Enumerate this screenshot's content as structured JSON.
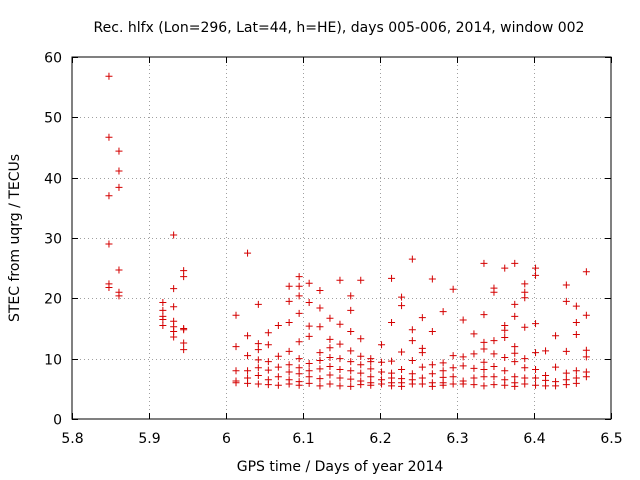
{
  "chart_data": {
    "type": "scatter",
    "title": "Rec. hlfx (Lon=296, Lat=44, h=HE), days 005-006, 2014, window 002",
    "xlabel": "GPS time / Days of year 2014",
    "ylabel": "STEC from uqrg / TECUs",
    "xlim": [
      5.8,
      6.5
    ],
    "ylim": [
      0,
      60
    ],
    "xticks": [
      5.8,
      5.9,
      6.0,
      6.1,
      6.2,
      6.3,
      6.4,
      6.5
    ],
    "xtick_labels": [
      "5.8",
      "5.9",
      "6",
      "6.1",
      "6.2",
      "6.3",
      "6.4",
      "6.5"
    ],
    "yticks": [
      0,
      10,
      20,
      30,
      40,
      50,
      60
    ],
    "ytick_labels": [
      "0",
      "10",
      "20",
      "30",
      "40",
      "50",
      "60"
    ],
    "grid": true,
    "marker": "+",
    "marker_color": "#d40000",
    "series": [
      {
        "name": "STEC",
        "points": [
          [
            5.848,
            56.8
          ],
          [
            5.848,
            46.7
          ],
          [
            5.848,
            37.0
          ],
          [
            5.848,
            29.0
          ],
          [
            5.848,
            22.4
          ],
          [
            5.848,
            21.8
          ],
          [
            5.861,
            44.4
          ],
          [
            5.861,
            41.1
          ],
          [
            5.861,
            38.4
          ],
          [
            5.861,
            24.7
          ],
          [
            5.861,
            21.0
          ],
          [
            5.861,
            20.4
          ],
          [
            5.918,
            19.3
          ],
          [
            5.918,
            18.0
          ],
          [
            5.918,
            17.0
          ],
          [
            5.918,
            16.5
          ],
          [
            5.918,
            15.5
          ],
          [
            5.932,
            30.5
          ],
          [
            5.932,
            21.6
          ],
          [
            5.932,
            18.6
          ],
          [
            5.932,
            16.2
          ],
          [
            5.932,
            15.3
          ],
          [
            5.932,
            14.5
          ],
          [
            5.932,
            13.6
          ],
          [
            5.945,
            24.6
          ],
          [
            5.945,
            23.6
          ],
          [
            5.945,
            15.0
          ],
          [
            5.945,
            14.8
          ],
          [
            5.945,
            12.6
          ],
          [
            5.945,
            11.5
          ],
          [
            6.013,
            17.2
          ],
          [
            6.013,
            12.0
          ],
          [
            6.013,
            8.0
          ],
          [
            6.013,
            6.3
          ],
          [
            6.013,
            6.0
          ],
          [
            6.028,
            27.5
          ],
          [
            6.028,
            13.8
          ],
          [
            6.028,
            10.5
          ],
          [
            6.028,
            8.0
          ],
          [
            6.028,
            6.8
          ],
          [
            6.028,
            5.9
          ],
          [
            6.042,
            19.0
          ],
          [
            6.042,
            12.5
          ],
          [
            6.042,
            11.5
          ],
          [
            6.042,
            9.8
          ],
          [
            6.042,
            8.5
          ],
          [
            6.042,
            7.2
          ],
          [
            6.042,
            5.8
          ],
          [
            6.055,
            14.3
          ],
          [
            6.055,
            12.3
          ],
          [
            6.055,
            9.5
          ],
          [
            6.055,
            8.1
          ],
          [
            6.055,
            6.5
          ],
          [
            6.055,
            5.7
          ],
          [
            6.068,
            15.5
          ],
          [
            6.068,
            10.4
          ],
          [
            6.068,
            8.6
          ],
          [
            6.068,
            7.0
          ],
          [
            6.068,
            5.6
          ],
          [
            6.082,
            22.0
          ],
          [
            6.082,
            19.5
          ],
          [
            6.082,
            16.0
          ],
          [
            6.082,
            11.2
          ],
          [
            6.082,
            9.0
          ],
          [
            6.082,
            7.8
          ],
          [
            6.082,
            6.5
          ],
          [
            6.082,
            5.8
          ],
          [
            6.095,
            23.6
          ],
          [
            6.095,
            22.0
          ],
          [
            6.095,
            20.4
          ],
          [
            6.095,
            17.5
          ],
          [
            6.095,
            12.8
          ],
          [
            6.095,
            10.0
          ],
          [
            6.095,
            8.5
          ],
          [
            6.095,
            7.5
          ],
          [
            6.095,
            6.2
          ],
          [
            6.095,
            5.6
          ],
          [
            6.108,
            22.5
          ],
          [
            6.108,
            19.3
          ],
          [
            6.108,
            15.4
          ],
          [
            6.108,
            13.7
          ],
          [
            6.108,
            9.2
          ],
          [
            6.108,
            8.0
          ],
          [
            6.108,
            7.0
          ],
          [
            6.108,
            5.9
          ],
          [
            6.122,
            21.3
          ],
          [
            6.122,
            18.4
          ],
          [
            6.122,
            15.3
          ],
          [
            6.122,
            11.0
          ],
          [
            6.122,
            9.7
          ],
          [
            6.122,
            8.3
          ],
          [
            6.122,
            6.7
          ],
          [
            6.122,
            5.5
          ],
          [
            6.135,
            16.7
          ],
          [
            6.135,
            13.2
          ],
          [
            6.135,
            11.8
          ],
          [
            6.135,
            10.2
          ],
          [
            6.135,
            8.7
          ],
          [
            6.135,
            7.3
          ],
          [
            6.135,
            5.8
          ],
          [
            6.148,
            23.0
          ],
          [
            6.148,
            15.7
          ],
          [
            6.148,
            12.4
          ],
          [
            6.148,
            10.0
          ],
          [
            6.148,
            8.2
          ],
          [
            6.148,
            6.8
          ],
          [
            6.148,
            5.5
          ],
          [
            6.162,
            20.4
          ],
          [
            6.162,
            18.0
          ],
          [
            6.162,
            14.5
          ],
          [
            6.162,
            11.3
          ],
          [
            6.162,
            9.5
          ],
          [
            6.162,
            8.0
          ],
          [
            6.162,
            6.6
          ],
          [
            6.162,
            5.4
          ],
          [
            6.175,
            23.0
          ],
          [
            6.175,
            13.3
          ],
          [
            6.175,
            10.4
          ],
          [
            6.175,
            9.0
          ],
          [
            6.175,
            7.6
          ],
          [
            6.175,
            6.3
          ],
          [
            6.175,
            5.7
          ],
          [
            6.188,
            10.0
          ],
          [
            6.188,
            9.5
          ],
          [
            6.188,
            8.3
          ],
          [
            6.188,
            7.0
          ],
          [
            6.188,
            6.0
          ],
          [
            6.188,
            5.6
          ],
          [
            6.202,
            12.3
          ],
          [
            6.202,
            9.4
          ],
          [
            6.202,
            7.8
          ],
          [
            6.202,
            6.5
          ],
          [
            6.202,
            5.8
          ],
          [
            6.215,
            23.3
          ],
          [
            6.215,
            16.0
          ],
          [
            6.215,
            9.6
          ],
          [
            6.215,
            7.6
          ],
          [
            6.215,
            6.8
          ],
          [
            6.215,
            6.0
          ],
          [
            6.215,
            5.5
          ],
          [
            6.228,
            20.2
          ],
          [
            6.228,
            18.8
          ],
          [
            6.228,
            11.1
          ],
          [
            6.228,
            8.2
          ],
          [
            6.228,
            6.7
          ],
          [
            6.228,
            6.0
          ],
          [
            6.228,
            5.4
          ],
          [
            6.242,
            26.5
          ],
          [
            6.242,
            14.8
          ],
          [
            6.242,
            13.0
          ],
          [
            6.242,
            9.7
          ],
          [
            6.242,
            7.5
          ],
          [
            6.242,
            6.5
          ],
          [
            6.242,
            5.8
          ],
          [
            6.255,
            16.8
          ],
          [
            6.255,
            11.7
          ],
          [
            6.255,
            11.0
          ],
          [
            6.255,
            8.6
          ],
          [
            6.255,
            6.8
          ],
          [
            6.255,
            5.8
          ],
          [
            6.268,
            23.2
          ],
          [
            6.268,
            14.5
          ],
          [
            6.268,
            9.0
          ],
          [
            6.268,
            7.5
          ],
          [
            6.268,
            6.0
          ],
          [
            6.268,
            5.4
          ],
          [
            6.282,
            17.8
          ],
          [
            6.282,
            9.3
          ],
          [
            6.282,
            8.0
          ],
          [
            6.282,
            6.9
          ],
          [
            6.282,
            6.0
          ],
          [
            6.282,
            5.6
          ],
          [
            6.295,
            21.5
          ],
          [
            6.295,
            10.5
          ],
          [
            6.295,
            8.5
          ],
          [
            6.295,
            7.0
          ],
          [
            6.295,
            5.8
          ],
          [
            6.308,
            16.4
          ],
          [
            6.308,
            10.3
          ],
          [
            6.308,
            8.8
          ],
          [
            6.308,
            6.3
          ],
          [
            6.308,
            5.8
          ],
          [
            6.322,
            14.1
          ],
          [
            6.322,
            10.8
          ],
          [
            6.322,
            8.4
          ],
          [
            6.322,
            6.8
          ],
          [
            6.322,
            5.7
          ],
          [
            6.335,
            25.8
          ],
          [
            6.335,
            17.3
          ],
          [
            6.335,
            12.7
          ],
          [
            6.335,
            11.6
          ],
          [
            6.335,
            9.4
          ],
          [
            6.335,
            8.2
          ],
          [
            6.335,
            7.0
          ],
          [
            6.335,
            5.5
          ],
          [
            6.348,
            21.7
          ],
          [
            6.348,
            21.0
          ],
          [
            6.348,
            13.0
          ],
          [
            6.348,
            10.8
          ],
          [
            6.348,
            8.7
          ],
          [
            6.348,
            7.0
          ],
          [
            6.348,
            5.7
          ],
          [
            6.362,
            25.0
          ],
          [
            6.362,
            15.5
          ],
          [
            6.362,
            14.7
          ],
          [
            6.362,
            13.5
          ],
          [
            6.362,
            10.2
          ],
          [
            6.362,
            8.0
          ],
          [
            6.362,
            6.5
          ],
          [
            6.362,
            5.6
          ],
          [
            6.375,
            25.8
          ],
          [
            6.375,
            19.0
          ],
          [
            6.375,
            17.0
          ],
          [
            6.375,
            12.0
          ],
          [
            6.375,
            10.9
          ],
          [
            6.375,
            9.5
          ],
          [
            6.375,
            7.0
          ],
          [
            6.375,
            6.0
          ],
          [
            6.375,
            5.4
          ],
          [
            6.388,
            22.4
          ],
          [
            6.388,
            21.0
          ],
          [
            6.388,
            20.1
          ],
          [
            6.388,
            15.2
          ],
          [
            6.388,
            10.0
          ],
          [
            6.388,
            8.5
          ],
          [
            6.388,
            6.8
          ],
          [
            6.388,
            5.8
          ],
          [
            6.402,
            25.0
          ],
          [
            6.402,
            23.8
          ],
          [
            6.402,
            15.8
          ],
          [
            6.402,
            11.0
          ],
          [
            6.402,
            8.2
          ],
          [
            6.402,
            6.8
          ],
          [
            6.402,
            5.6
          ],
          [
            6.415,
            11.3
          ],
          [
            6.415,
            7.2
          ],
          [
            6.415,
            6.4
          ],
          [
            6.415,
            5.5
          ],
          [
            6.428,
            13.8
          ],
          [
            6.428,
            8.6
          ],
          [
            6.428,
            6.2
          ],
          [
            6.428,
            5.5
          ],
          [
            6.442,
            22.2
          ],
          [
            6.442,
            19.5
          ],
          [
            6.442,
            11.2
          ],
          [
            6.442,
            7.6
          ],
          [
            6.442,
            6.5
          ],
          [
            6.442,
            5.7
          ],
          [
            6.455,
            18.7
          ],
          [
            6.455,
            16.0
          ],
          [
            6.455,
            14.0
          ],
          [
            6.455,
            8.0
          ],
          [
            6.455,
            6.8
          ],
          [
            6.455,
            5.9
          ],
          [
            6.468,
            24.4
          ],
          [
            6.468,
            17.2
          ],
          [
            6.468,
            11.4
          ],
          [
            6.468,
            10.3
          ],
          [
            6.468,
            7.8
          ],
          [
            6.468,
            7.0
          ]
        ]
      }
    ]
  }
}
